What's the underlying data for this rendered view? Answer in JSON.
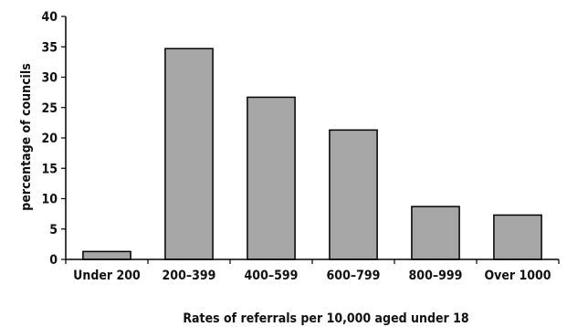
{
  "chart_data": {
    "type": "bar",
    "title": "",
    "xlabel": "Rates of referrals per 10,000 aged under 18",
    "ylabel": "percentage of councils",
    "categories": [
      "Under 200",
      "200–399",
      "400–599",
      "600–799",
      "800–999",
      "Over 1000"
    ],
    "values": [
      1.3,
      34.7,
      26.7,
      21.3,
      8.7,
      7.3
    ],
    "ylim": [
      0,
      40
    ],
    "yticks": [
      0,
      5,
      10,
      15,
      20,
      25,
      30,
      35,
      40
    ],
    "grid": false,
    "legend": "none",
    "bar_color": "#a6a6a6",
    "bar_edge_color": "#000000"
  }
}
